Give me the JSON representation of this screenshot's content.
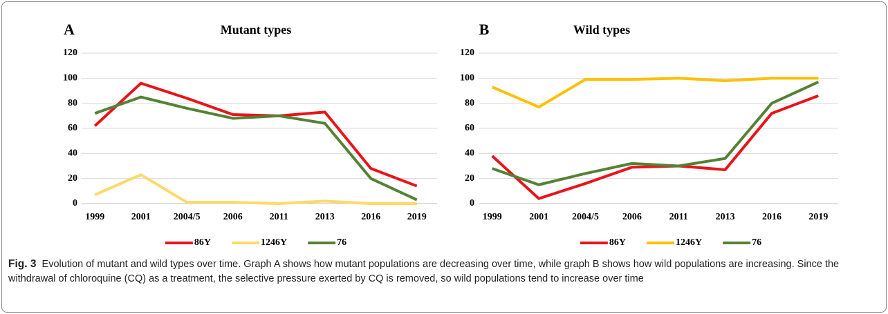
{
  "chart_data": [
    {
      "type": "line",
      "panel": "A",
      "title": "Mutant types",
      "categories": [
        "1999",
        "2001",
        "2004/5",
        "2006",
        "2011",
        "2013",
        "2016",
        "2019"
      ],
      "series": [
        {
          "name": "86Y",
          "color": "#e8141b",
          "values": [
            62,
            96,
            84,
            71,
            70,
            73,
            28,
            14
          ]
        },
        {
          "name": "1246Y",
          "color": "#ffd966",
          "values": [
            7,
            23,
            1,
            1,
            0,
            2,
            0,
            0
          ]
        },
        {
          "name": "76",
          "color": "#548235",
          "values": [
            72,
            85,
            76,
            68,
            70,
            64,
            20,
            3
          ]
        }
      ],
      "ylim": [
        0,
        120
      ],
      "yticks": [
        0,
        20,
        40,
        60,
        80,
        100,
        120
      ],
      "grid": true,
      "legend": "bottom"
    },
    {
      "type": "line",
      "panel": "B",
      "title": "Wild types",
      "categories": [
        "1999",
        "2001",
        "2004/5",
        "2006",
        "2011",
        "2013",
        "2016",
        "2019"
      ],
      "series": [
        {
          "name": "86Y",
          "color": "#e8141b",
          "values": [
            38,
            4,
            16,
            29,
            30,
            27,
            72,
            86
          ]
        },
        {
          "name": "1246Y",
          "color": "#ffc000",
          "values": [
            93,
            77,
            99,
            99,
            100,
            98,
            100,
            100
          ]
        },
        {
          "name": "76",
          "color": "#548235",
          "values": [
            28,
            15,
            24,
            32,
            30,
            36,
            80,
            97
          ]
        }
      ],
      "ylim": [
        0,
        120
      ],
      "yticks": [
        0,
        20,
        40,
        60,
        80,
        100,
        120
      ],
      "grid": true,
      "legend": "bottom"
    }
  ],
  "caption": {
    "label": "Fig. 3",
    "text": "Evolution of mutant and wild types over time. Graph A shows how mutant populations are decreasing over time, while graph B shows how wild populations are increasing. Since the withdrawal of chloroquine (CQ) as a treatment, the selective pressure exerted by CQ is removed, so wild populations tend to increase over time"
  }
}
